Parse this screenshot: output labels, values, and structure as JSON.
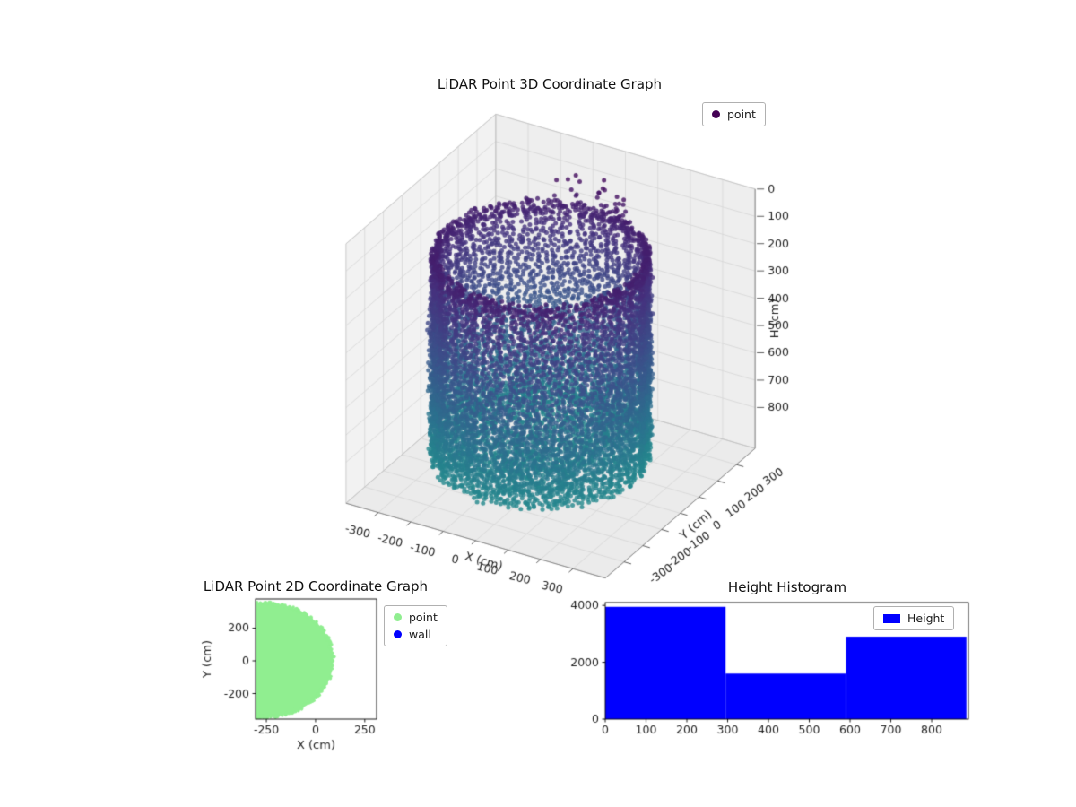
{
  "page": {
    "background": "#ffffff"
  },
  "chart_data": [
    {
      "id": "lidar-3d",
      "type": "scatter3d",
      "title": "LiDAR Point 3D Coordinate Graph",
      "xlabel": "X (cm)",
      "ylabel": "Y (cm)",
      "zlabel": "H (cm)",
      "xlim": [
        -400,
        400
      ],
      "ylim": [
        -400,
        400
      ],
      "zlim": [
        0,
        950
      ],
      "zaxis_inverted": true,
      "xticks": [
        -300,
        -200,
        -100,
        0,
        100,
        200,
        300
      ],
      "yticks": [
        -300,
        -200,
        -100,
        0,
        100,
        200,
        300
      ],
      "zticks": [
        0,
        100,
        200,
        300,
        400,
        500,
        600,
        700,
        800
      ],
      "view": {
        "elev": 30,
        "azim": -60
      },
      "grid": true,
      "legend": {
        "location": "upper right",
        "entries": [
          {
            "label": "point",
            "color": "#440154"
          }
        ]
      },
      "point_cloud": {
        "description": "cylindrical room scan: wall columns plus floor points, colored by height (viridis, dark purple = 0 cm top rim, teal = deep floor)",
        "center_xy": [
          -30,
          0
        ],
        "radius": 290,
        "wall_top_z": 140,
        "wall_bottom_z": 890,
        "floor_z": [
          795,
          890
        ],
        "colormap_stops": [
          "#440154",
          "#46327e",
          "#3b528b",
          "#2c728e",
          "#21918c"
        ]
      }
    },
    {
      "id": "lidar-2d",
      "type": "scatter",
      "title": "LiDAR Point 2D Coordinate Graph",
      "xlabel": "X (cm)",
      "ylabel": "Y (cm)",
      "xlim": [
        -305,
        310
      ],
      "ylim": [
        -356,
        378
      ],
      "xticks": [
        -250,
        0,
        250
      ],
      "yticks": [
        -200,
        0,
        200
      ],
      "legend": {
        "location": "outside upper right",
        "entries": [
          {
            "label": "point",
            "color": "#90ee90"
          },
          {
            "label": "wall",
            "color": "#0000ff"
          }
        ]
      },
      "point_region": {
        "shape": "disc",
        "center": [
          -260,
          5
        ],
        "radius": 350,
        "color": "#90ee90",
        "clipped_to_axes": true
      }
    },
    {
      "id": "height-histogram",
      "type": "bar",
      "title": "Height Histogram",
      "xlabel": "",
      "ylabel": "",
      "bin_edges": [
        0,
        295,
        590,
        885
      ],
      "counts": [
        3950,
        1600,
        2900
      ],
      "bar_color": "#0000ff",
      "xlim": [
        0,
        890
      ],
      "ylim": [
        0,
        4100
      ],
      "xticks": [
        0,
        100,
        200,
        300,
        400,
        500,
        600,
        700,
        800
      ],
      "yticks": [
        0,
        2000,
        4000
      ],
      "legend": {
        "location": "upper right",
        "entries": [
          {
            "label": "Height",
            "color": "#0000ff"
          }
        ]
      }
    }
  ]
}
